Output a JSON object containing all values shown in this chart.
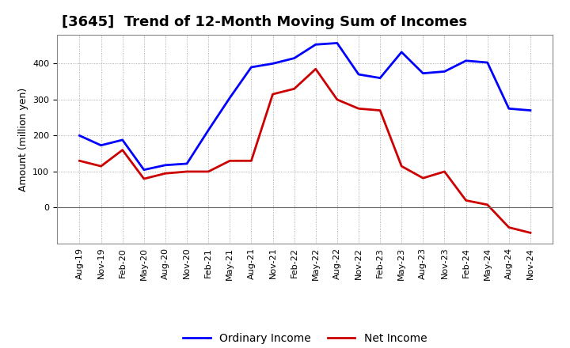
{
  "title": "[3645]  Trend of 12-Month Moving Sum of Incomes",
  "ylabel": "Amount (million yen)",
  "background_color": "#ffffff",
  "plot_bg_color": "#ffffff",
  "grid_color": "#999999",
  "x_labels": [
    "Aug-19",
    "Nov-19",
    "Feb-20",
    "May-20",
    "Aug-20",
    "Nov-20",
    "Feb-21",
    "May-21",
    "Aug-21",
    "Nov-21",
    "Feb-22",
    "May-22",
    "Aug-22",
    "Nov-22",
    "Feb-23",
    "May-23",
    "Aug-23",
    "Nov-23",
    "Feb-24",
    "May-24",
    "Aug-24",
    "Nov-24"
  ],
  "ordinary_income": [
    200,
    173,
    188,
    105,
    118,
    122,
    215,
    305,
    390,
    400,
    415,
    453,
    457,
    370,
    360,
    432,
    373,
    378,
    408,
    403,
    275,
    270
  ],
  "net_income": [
    130,
    115,
    160,
    80,
    95,
    100,
    100,
    130,
    130,
    315,
    330,
    385,
    300,
    275,
    270,
    115,
    82,
    100,
    20,
    8,
    -55,
    -70
  ],
  "ordinary_color": "#0000ff",
  "net_color": "#cc0000",
  "ylim": [
    -100,
    480
  ],
  "yticks": [
    0,
    100,
    200,
    300,
    400
  ],
  "title_fontsize": 13,
  "axis_fontsize": 9,
  "tick_fontsize": 8,
  "legend_fontsize": 10,
  "line_width": 2.0
}
